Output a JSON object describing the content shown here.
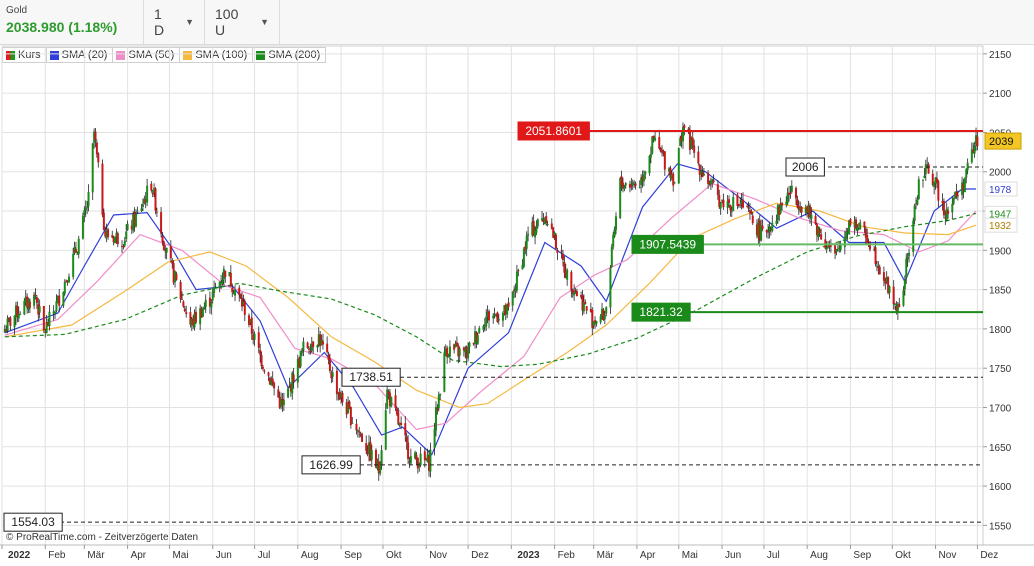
{
  "header": {
    "symbol": "Gold",
    "price": "2038.980 (1.18%)",
    "interval": "1 D",
    "units": "100 U"
  },
  "legend": [
    {
      "label": "Kurs",
      "color": "kurs"
    },
    {
      "label": "SMA (20)",
      "color": "#2f3fd8"
    },
    {
      "label": "SMA (50)",
      "color": "#f08cc8"
    },
    {
      "label": "SMA (100)",
      "color": "#f5b942"
    },
    {
      "label": "SMA (200)",
      "color": "#1a8a1a"
    }
  ],
  "footer": {
    "copyright": "© ProRealTime.com - Zeitverzögerte Daten"
  },
  "colors": {
    "up": "#1a8a1a",
    "down": "#c81818",
    "resistance": "#e01818",
    "support": "#1a8a1a"
  },
  "chart_data": {
    "type": "candlestick",
    "title": "Gold",
    "x_axis": {
      "labels": [
        "2022",
        "Feb",
        "Mär",
        "Apr",
        "Mai",
        "Jun",
        "Jul",
        "Aug",
        "Sep",
        "Okt",
        "Nov",
        "Dez",
        "2023",
        "Feb",
        "Mär",
        "Apr",
        "Mai",
        "Jun",
        "Jul",
        "Aug",
        "Sep",
        "Okt",
        "Nov",
        "Dez"
      ],
      "range": [
        "2022-01-01",
        "2023-12-05"
      ]
    },
    "y_axis": {
      "ticks": [
        1550,
        1600,
        1650,
        1700,
        1750,
        1800,
        1850,
        1900,
        1950,
        2000,
        2050,
        2100,
        2150
      ],
      "range": [
        1525,
        2160
      ],
      "position": "right",
      "grid": true
    },
    "last_price_label": "2039",
    "level_lines": [
      {
        "value": 2051.8601,
        "label": "2051.8601",
        "style": "solid",
        "color": "#e01818",
        "label_pos": "left"
      },
      {
        "value": 2006,
        "label": "2006",
        "style": "dashed",
        "color": "#222",
        "label_pos": "mid"
      },
      {
        "value": 1907.5439,
        "label": "1907.5439",
        "style": "solid",
        "color": "#66bb66",
        "label_pos": "left"
      },
      {
        "value": 1821.32,
        "label": "1821.32",
        "style": "solid",
        "color": "#1a8a1a",
        "label_pos": "left"
      },
      {
        "value": 1738.51,
        "label": "1738.51",
        "style": "dashed",
        "color": "#222",
        "label_pos": "left"
      },
      {
        "value": 1626.99,
        "label": "1626.99",
        "style": "dashed",
        "color": "#222",
        "label_pos": "left"
      },
      {
        "value": 1554.03,
        "label": "1554.03",
        "style": "dashed",
        "color": "#222",
        "label_pos": "far-left"
      }
    ],
    "sma_end_labels": [
      {
        "name": "SMA (20)",
        "value": 1978,
        "label": "1978"
      },
      {
        "name": "SMA (200)",
        "value": 1947,
        "label": "1947"
      },
      {
        "name": "SMA (100)",
        "value": 1932,
        "label": "1932"
      }
    ],
    "price_path": [
      [
        "2022-01-03",
        1800
      ],
      [
        "2022-01-12",
        1822
      ],
      [
        "2022-01-25",
        1842
      ],
      [
        "2022-01-31",
        1795
      ],
      [
        "2022-02-10",
        1835
      ],
      [
        "2022-02-24",
        1905
      ],
      [
        "2022-03-04",
        1965
      ],
      [
        "2022-03-08",
        2050
      ],
      [
        "2022-03-16",
        1920
      ],
      [
        "2022-03-29",
        1915
      ],
      [
        "2022-04-08",
        1945
      ],
      [
        "2022-04-18",
        1985
      ],
      [
        "2022-04-29",
        1895
      ],
      [
        "2022-05-16",
        1805
      ],
      [
        "2022-05-31",
        1840
      ],
      [
        "2022-06-10",
        1875
      ],
      [
        "2022-06-24",
        1825
      ],
      [
        "2022-07-05",
        1765
      ],
      [
        "2022-07-21",
        1700
      ],
      [
        "2022-08-05",
        1775
      ],
      [
        "2022-08-16",
        1790
      ],
      [
        "2022-08-31",
        1715
      ],
      [
        "2022-09-15",
        1665
      ],
      [
        "2022-09-28",
        1620
      ],
      [
        "2022-10-04",
        1720
      ],
      [
        "2022-10-21",
        1635
      ],
      [
        "2022-11-03",
        1630
      ],
      [
        "2022-11-15",
        1775
      ],
      [
        "2022-11-30",
        1768
      ],
      [
        "2022-12-13",
        1815
      ],
      [
        "2022-12-30",
        1822
      ],
      [
        "2023-01-13",
        1920
      ],
      [
        "2023-01-26",
        1945
      ],
      [
        "2023-02-10",
        1868
      ],
      [
        "2023-02-28",
        1812
      ],
      [
        "2023-03-09",
        1818
      ],
      [
        "2023-03-20",
        1985
      ],
      [
        "2023-04-03",
        1985
      ],
      [
        "2023-04-13",
        2040
      ],
      [
        "2023-04-28",
        1990
      ],
      [
        "2023-05-04",
        2060
      ],
      [
        "2023-05-15",
        2010
      ],
      [
        "2023-05-31",
        1962
      ],
      [
        "2023-06-15",
        1958
      ],
      [
        "2023-06-30",
        1918
      ],
      [
        "2023-07-20",
        1975
      ],
      [
        "2023-08-01",
        1950
      ],
      [
        "2023-08-21",
        1890
      ],
      [
        "2023-09-01",
        1940
      ],
      [
        "2023-09-14",
        1915
      ],
      [
        "2023-09-29",
        1848
      ],
      [
        "2023-10-06",
        1820
      ],
      [
        "2023-10-20",
        1985
      ],
      [
        "2023-10-27",
        2005
      ],
      [
        "2023-11-08",
        1950
      ],
      [
        "2023-11-20",
        1980
      ],
      [
        "2023-11-30",
        2040
      ],
      [
        "2023-12-01",
        2039
      ]
    ],
    "sma_series": [
      {
        "name": "SMA (20)",
        "color": "#2f3fd8",
        "points": [
          [
            "2022-01-03",
            1795
          ],
          [
            "2022-02-10",
            1820
          ],
          [
            "2022-03-01",
            1880
          ],
          [
            "2022-03-22",
            1945
          ],
          [
            "2022-04-15",
            1948
          ],
          [
            "2022-05-02",
            1905
          ],
          [
            "2022-05-20",
            1850
          ],
          [
            "2022-06-15",
            1855
          ],
          [
            "2022-07-05",
            1810
          ],
          [
            "2022-07-25",
            1725
          ],
          [
            "2022-08-20",
            1770
          ],
          [
            "2022-09-10",
            1725
          ],
          [
            "2022-09-30",
            1665
          ],
          [
            "2022-10-15",
            1675
          ],
          [
            "2022-11-05",
            1640
          ],
          [
            "2022-12-01",
            1750
          ],
          [
            "2022-12-30",
            1795
          ],
          [
            "2023-01-25",
            1910
          ],
          [
            "2023-02-20",
            1880
          ],
          [
            "2023-03-10",
            1835
          ],
          [
            "2023-04-05",
            1955
          ],
          [
            "2023-04-30",
            2010
          ],
          [
            "2023-05-20",
            2000
          ],
          [
            "2023-06-15",
            1965
          ],
          [
            "2023-07-10",
            1928
          ],
          [
            "2023-08-05",
            1950
          ],
          [
            "2023-08-31",
            1910
          ],
          [
            "2023-09-25",
            1910
          ],
          [
            "2023-10-10",
            1860
          ],
          [
            "2023-10-31",
            1950
          ],
          [
            "2023-11-20",
            1978
          ],
          [
            "2023-11-30",
            1978
          ]
        ]
      },
      {
        "name": "SMA (50)",
        "color": "#f08cc8",
        "points": [
          [
            "2022-01-03",
            1792
          ],
          [
            "2022-02-10",
            1812
          ],
          [
            "2022-03-10",
            1860
          ],
          [
            "2022-04-10",
            1920
          ],
          [
            "2022-05-10",
            1900
          ],
          [
            "2022-06-10",
            1855
          ],
          [
            "2022-07-05",
            1840
          ],
          [
            "2022-07-30",
            1775
          ],
          [
            "2022-08-25",
            1762
          ],
          [
            "2022-09-25",
            1730
          ],
          [
            "2022-10-25",
            1672
          ],
          [
            "2022-11-15",
            1680
          ],
          [
            "2022-12-10",
            1720
          ],
          [
            "2023-01-10",
            1765
          ],
          [
            "2023-02-05",
            1840
          ],
          [
            "2023-03-01",
            1868
          ],
          [
            "2023-03-25",
            1888
          ],
          [
            "2023-04-25",
            1940
          ],
          [
            "2023-05-25",
            1985
          ],
          [
            "2023-06-25",
            1965
          ],
          [
            "2023-07-25",
            1942
          ],
          [
            "2023-08-25",
            1925
          ],
          [
            "2023-09-25",
            1920
          ],
          [
            "2023-10-20",
            1898
          ],
          [
            "2023-11-10",
            1912
          ],
          [
            "2023-11-30",
            1950
          ]
        ]
      },
      {
        "name": "SMA (100)",
        "color": "#f5b942",
        "points": [
          [
            "2022-01-03",
            1790
          ],
          [
            "2022-02-20",
            1805
          ],
          [
            "2022-03-30",
            1848
          ],
          [
            "2022-04-30",
            1885
          ],
          [
            "2022-05-30",
            1898
          ],
          [
            "2022-06-25",
            1880
          ],
          [
            "2022-07-25",
            1840
          ],
          [
            "2022-08-25",
            1790
          ],
          [
            "2022-09-25",
            1758
          ],
          [
            "2022-10-25",
            1722
          ],
          [
            "2022-11-25",
            1700
          ],
          [
            "2022-12-15",
            1705
          ],
          [
            "2023-01-10",
            1735
          ],
          [
            "2023-02-10",
            1770
          ],
          [
            "2023-03-10",
            1805
          ],
          [
            "2023-04-10",
            1858
          ],
          [
            "2023-05-10",
            1915
          ],
          [
            "2023-06-10",
            1940
          ],
          [
            "2023-07-10",
            1960
          ],
          [
            "2023-08-10",
            1950
          ],
          [
            "2023-09-10",
            1930
          ],
          [
            "2023-10-10",
            1922
          ],
          [
            "2023-11-10",
            1920
          ],
          [
            "2023-11-30",
            1932
          ]
        ]
      },
      {
        "name": "SMA (200)",
        "color": "#1a8a1a",
        "dashed": true,
        "points": [
          [
            "2022-01-03",
            1790
          ],
          [
            "2022-02-15",
            1793
          ],
          [
            "2022-03-30",
            1812
          ],
          [
            "2022-05-10",
            1843
          ],
          [
            "2022-06-20",
            1858
          ],
          [
            "2022-07-20",
            1848
          ],
          [
            "2022-08-25",
            1838
          ],
          [
            "2022-09-25",
            1818
          ],
          [
            "2022-10-25",
            1790
          ],
          [
            "2022-11-20",
            1760
          ],
          [
            "2022-12-25",
            1752
          ],
          [
            "2023-01-20",
            1755
          ],
          [
            "2023-02-25",
            1768
          ],
          [
            "2023-04-01",
            1788
          ],
          [
            "2023-05-15",
            1825
          ],
          [
            "2023-06-25",
            1865
          ],
          [
            "2023-08-01",
            1898
          ],
          [
            "2023-09-05",
            1918
          ],
          [
            "2023-10-10",
            1930
          ],
          [
            "2023-11-10",
            1938
          ],
          [
            "2023-11-30",
            1947
          ]
        ]
      }
    ]
  }
}
